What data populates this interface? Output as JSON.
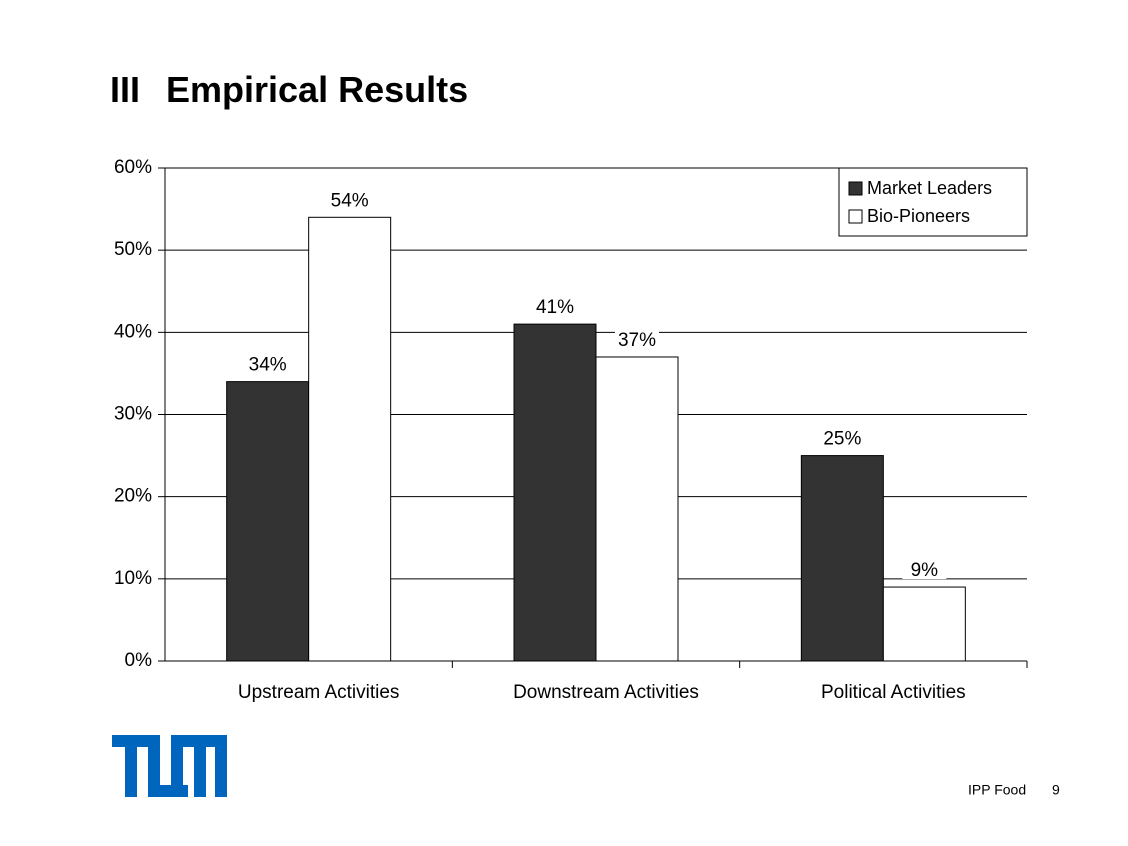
{
  "header": {
    "section": "III",
    "title": "Empirical Results"
  },
  "chart_data": {
    "type": "bar",
    "categories": [
      "Upstream Activities",
      "Downstream Activities",
      "Political Activities"
    ],
    "series": [
      {
        "name": "Market Leaders",
        "color": "#333333",
        "values": [
          34,
          41,
          25
        ],
        "value_labels": [
          "34%",
          "41%",
          "25%"
        ]
      },
      {
        "name": "Bio-Pioneers",
        "color": "#ffffff",
        "values": [
          54,
          37,
          9
        ],
        "value_labels": [
          "54%",
          "37%",
          "9%"
        ]
      }
    ],
    "ylim": [
      0,
      60
    ],
    "yticks": [
      {
        "value": 0,
        "label": "0%"
      },
      {
        "value": 10,
        "label": "10%"
      },
      {
        "value": 20,
        "label": "20%"
      },
      {
        "value": 30,
        "label": "30%"
      },
      {
        "value": 40,
        "label": "40%"
      },
      {
        "value": 50,
        "label": "50%"
      },
      {
        "value": 60,
        "label": "60%"
      }
    ],
    "grid": true,
    "legend": "top-right"
  },
  "footer": {
    "text": "IPP Food",
    "page": "9"
  }
}
